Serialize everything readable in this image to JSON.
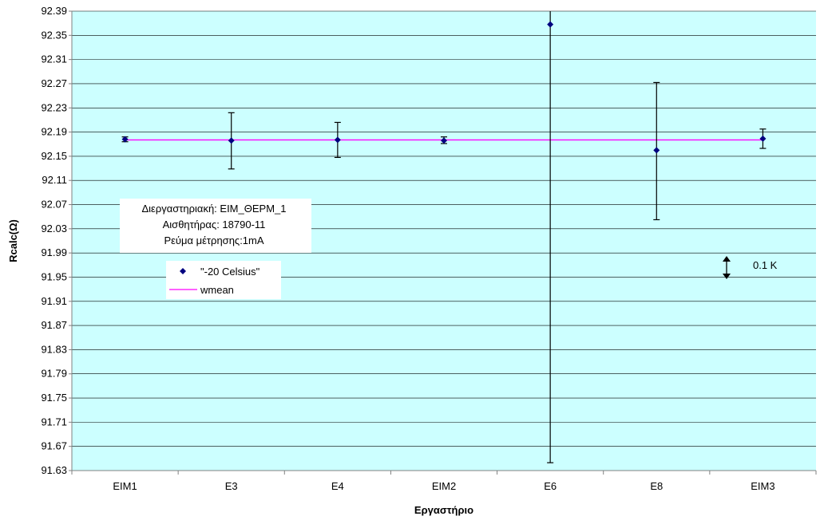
{
  "chart_data": {
    "type": "scatter",
    "title": "",
    "xlabel": "Εργαστήριο",
    "ylabel": "Rcalc(Ω)",
    "ylim": [
      91.63,
      92.39
    ],
    "y_ticks": [
      "92.39",
      "92.35",
      "92.31",
      "92.27",
      "92.23",
      "92.19",
      "92.15",
      "92.11",
      "92.07",
      "92.03",
      "91.99",
      "91.95",
      "91.91",
      "91.87",
      "91.83",
      "91.79",
      "91.75",
      "91.71",
      "91.67",
      "91.63"
    ],
    "categories": [
      "EIM1",
      "E3",
      "E4",
      "EIM2",
      "E6",
      "E8",
      "EIM3"
    ],
    "series": [
      {
        "name": "\"-20 Celsius\"",
        "values": [
          92.178,
          92.176,
          92.177,
          92.176,
          92.368,
          92.16,
          92.179
        ],
        "err_low": [
          92.174,
          92.129,
          92.148,
          92.171,
          91.643,
          92.045,
          92.163
        ],
        "err_high": [
          92.182,
          92.222,
          92.206,
          92.182,
          92.393,
          92.272,
          92.195
        ],
        "color": "#000080"
      },
      {
        "name": "wmean",
        "value": 92.177,
        "color": "#ff00ff"
      }
    ],
    "grid": true,
    "plot_background": "#ccffff",
    "legend_position": "left-middle"
  },
  "info_box": {
    "line1": "Διεργαστηριακή: ΕΙΜ_ΘΕΡΜ_1",
    "line2": "Αισθητήρας: 18790-11",
    "line3": "Ρεύμα μέτρησης:1mA"
  },
  "scale_note": "0.1 K"
}
